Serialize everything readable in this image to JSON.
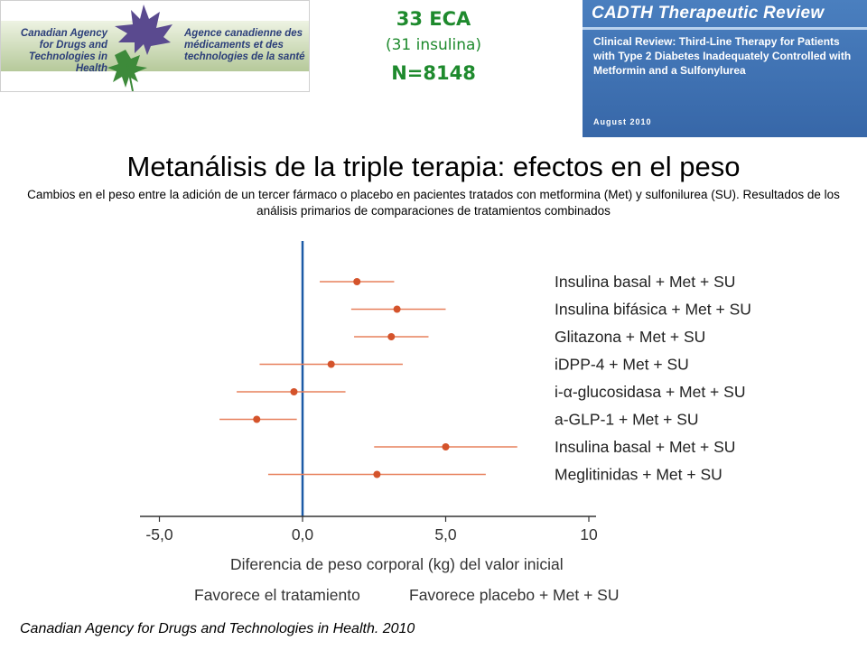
{
  "logo": {
    "english_text": "Canadian Agency for Drugs and Technologies in Health",
    "french_text": "Agence canadienne des médicaments et des technologies de la santé",
    "icon": "maple-leaf-icon"
  },
  "study_info": {
    "rct_count": "33 ECA",
    "insulin_count": "(31 insulina)",
    "sample_size": "N=8148"
  },
  "report": {
    "series_title": "CADTH Therapeutic Review",
    "body": "Clinical Review: Third-Line Therapy for Patients with Type 2 Diabetes Inadequately Controlled with Metformin and a Sulfonylurea",
    "date": "August 2010"
  },
  "title": "Metanálisis de la triple terapia: efectos en el peso",
  "subtitle": "Cambios en el peso entre la adición de un tercer fármaco o placebo en pacientes tratados con metformina (Met) y sulfonilurea (SU). Resultados de los análisis primarios de comparaciones de tratamientos combinados",
  "chart_data": {
    "type": "forest",
    "xlabel": "Diferencia de peso corporal (kg) del valor inicial",
    "favors_left": "Favorece el tratamiento",
    "favors_right": "Favorece placebo + Met + SU",
    "xlim": [
      -5.8,
      10
    ],
    "ticks": [
      {
        "value": -5,
        "label": "-5,0"
      },
      {
        "value": 0,
        "label": "0,0"
      },
      {
        "value": 5,
        "label": "5,0"
      },
      {
        "value": 10,
        "label": "10"
      }
    ],
    "reference_line": 0,
    "rows": [
      {
        "label": "Insulina basal + Met + SU",
        "estimate": 1.9,
        "lower": 0.6,
        "upper": 3.2
      },
      {
        "label": "Insulina bifásica + Met + SU",
        "estimate": 3.3,
        "lower": 1.7,
        "upper": 5.0
      },
      {
        "label": "Glitazona + Met + SU",
        "estimate": 3.1,
        "lower": 1.8,
        "upper": 4.4
      },
      {
        "label": "iDPP-4 + Met + SU",
        "estimate": 1.0,
        "lower": -1.5,
        "upper": 3.5
      },
      {
        "label": "i-α-glucosidasa + Met + SU",
        "estimate": -0.3,
        "lower": -2.3,
        "upper": 1.5
      },
      {
        "label": "a-GLP-1 + Met + SU",
        "estimate": -1.6,
        "lower": -2.9,
        "upper": -0.2
      },
      {
        "label": "Insulina basal + Met + SU",
        "estimate": 5.0,
        "lower": 2.5,
        "upper": 7.5
      },
      {
        "label": "Meglitinidas + Met + SU",
        "estimate": 2.6,
        "lower": -1.2,
        "upper": 6.4
      }
    ],
    "colors": {
      "point": "#d4532b",
      "ci_line": "#e7805c",
      "reference_line": "#1c5aa6",
      "axis": "#333333"
    }
  },
  "source": "Canadian Agency for Drugs and Technologies in Health. 2010"
}
